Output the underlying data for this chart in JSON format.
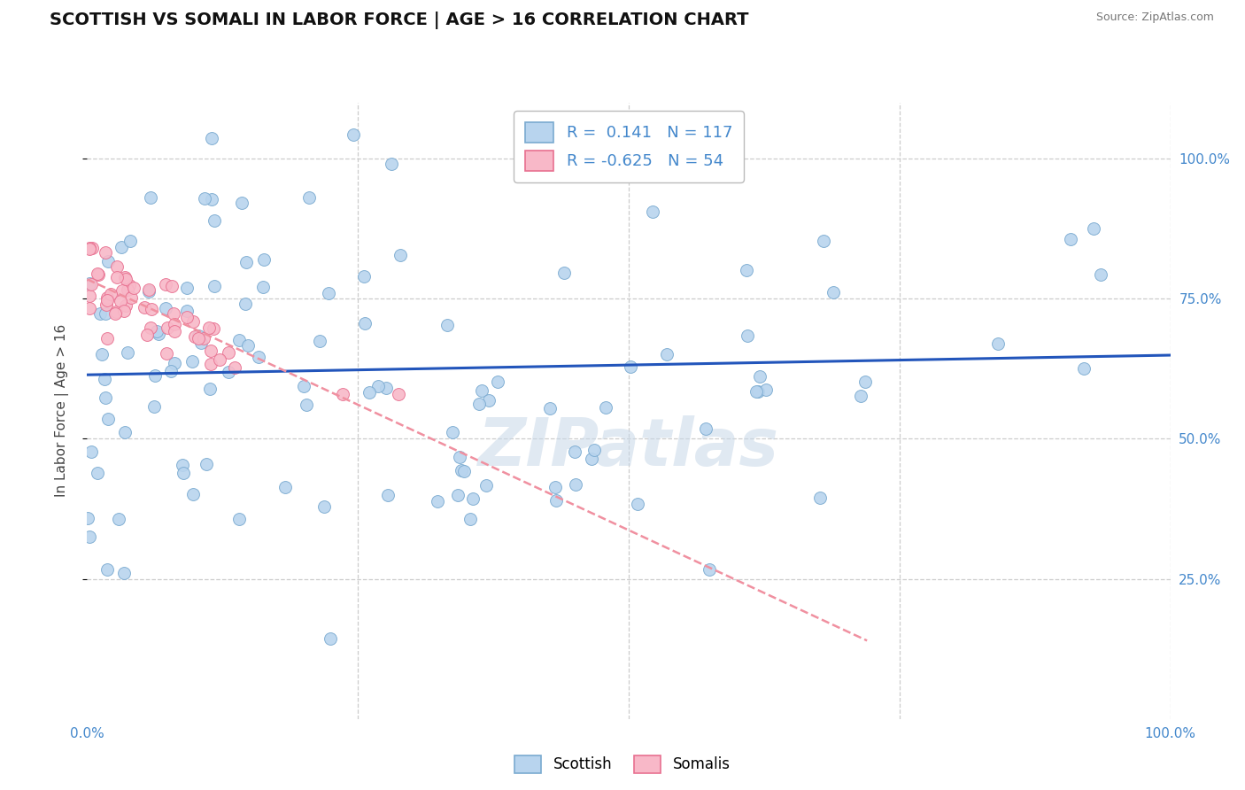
{
  "title": "SCOTTISH VS SOMALI IN LABOR FORCE | AGE > 16 CORRELATION CHART",
  "source": "Source: ZipAtlas.com",
  "xlabel": "",
  "ylabel": "In Labor Force | Age > 16",
  "xlim": [
    0.0,
    1.0
  ],
  "ylim": [
    0.0,
    1.1
  ],
  "scottish_R": 0.141,
  "scottish_N": 117,
  "somali_R": -0.625,
  "somali_N": 54,
  "scottish_color": "#b8d4ee",
  "scottish_edge": "#7aaad0",
  "somali_color": "#f8b8c8",
  "somali_edge": "#e87090",
  "scottish_line_color": "#2255bb",
  "somali_line_color": "#f090a0",
  "watermark": "ZIPatlas",
  "background_color": "#ffffff",
  "grid_color": "#cccccc",
  "scottish_seed": 12,
  "somali_seed": 7
}
